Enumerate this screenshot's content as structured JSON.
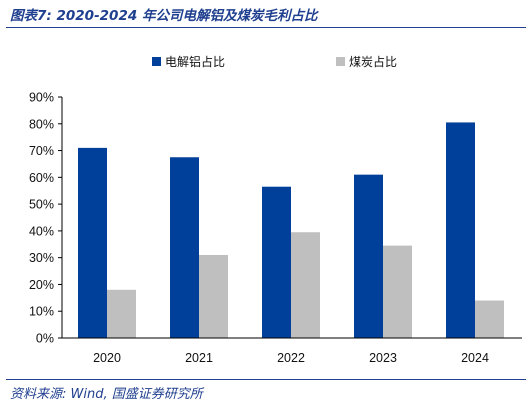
{
  "figure": {
    "title": "图表7:  2020-2024 年公司电解铝及煤炭毛利占比",
    "source": "资料来源:  Wind, 国盛证券研究所"
  },
  "colors": {
    "series_1": "#003f9a",
    "series_2": "#bfbfbf",
    "accent": "#1f3f8f"
  },
  "chart_data": {
    "type": "bar",
    "categories": [
      "2020",
      "2021",
      "2022",
      "2023",
      "2024"
    ],
    "series": [
      {
        "name": "电解铝占比",
        "values": [
          71,
          67.5,
          56.5,
          61,
          80.5
        ]
      },
      {
        "name": "煤炭占比",
        "values": [
          18,
          31,
          39.5,
          34.5,
          14
        ]
      }
    ],
    "y_ticks": [
      "0%",
      "10%",
      "20%",
      "30%",
      "40%",
      "50%",
      "60%",
      "70%",
      "80%",
      "90%"
    ],
    "ylim": [
      0,
      90
    ],
    "grid": false,
    "legend": "top"
  }
}
